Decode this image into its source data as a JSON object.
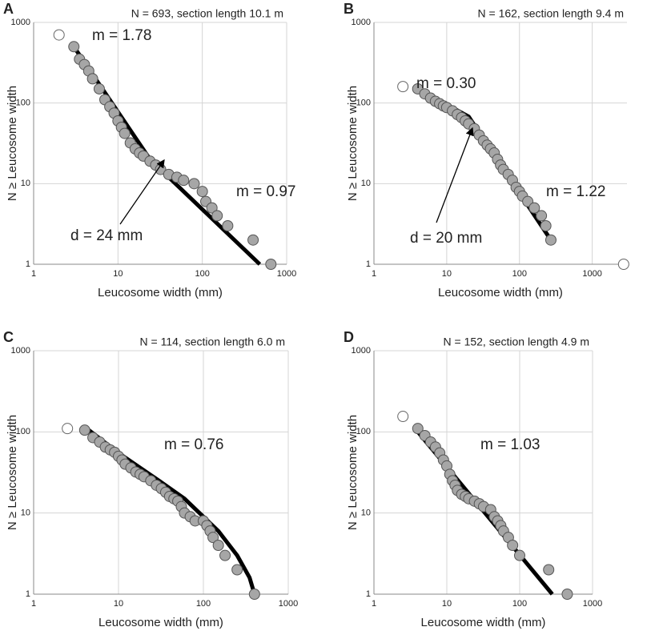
{
  "chart_data": [
    {
      "type": "scatter",
      "panel": "A",
      "title": "N = 693, section length 10.1 m",
      "x_label": "Leucosome width (mm)",
      "y_label": "N ≥ Leucosome width",
      "log_scale": true,
      "grid": true,
      "xlim": [
        1,
        1000
      ],
      "ylim": [
        1,
        1000
      ],
      "xticks": [
        1,
        10,
        100,
        1000
      ],
      "yticks": [
        1,
        10,
        100,
        1000
      ],
      "series": [
        {
          "marker": "filled",
          "color": "#a6a6a6",
          "x": [
            3,
            3.5,
            4,
            4.5,
            5,
            6,
            7,
            8,
            9,
            10,
            11,
            12,
            14,
            16,
            18,
            20,
            24,
            28,
            32,
            40,
            50,
            60,
            80,
            100,
            110,
            130,
            150,
            200,
            400,
            650
          ],
          "values": [
            500,
            350,
            300,
            250,
            200,
            150,
            110,
            90,
            75,
            60,
            50,
            42,
            32,
            27,
            24,
            22,
            19,
            17,
            15,
            13,
            12,
            11,
            10,
            8,
            6,
            5,
            4,
            3,
            2,
            1
          ]
        },
        {
          "marker": "open",
          "color": "#ffffff",
          "x": [
            2
          ],
          "values": [
            700
          ]
        },
        {
          "marker": "line",
          "color": "#000000",
          "x": [
            3,
            24,
            480
          ],
          "values": [
            500,
            20,
            1
          ]
        }
      ],
      "annotations": [
        "m = 1.78",
        "m = 0.97",
        "d = 24 mm"
      ]
    },
    {
      "type": "scatter",
      "panel": "B",
      "title": "N = 162, section length 9.4 m",
      "x_label": "Leucosome width (mm)",
      "y_label": "N ≥ Leucosome width",
      "log_scale": true,
      "grid": true,
      "xlim": [
        1,
        3000
      ],
      "ylim": [
        1,
        1000
      ],
      "xticks": [
        1,
        10,
        100,
        1000
      ],
      "yticks": [
        1,
        10,
        100,
        1000
      ],
      "series": [
        {
          "marker": "filled",
          "color": "#a6a6a6",
          "x": [
            4,
            5,
            6,
            7,
            8,
            9,
            10,
            12,
            14,
            16,
            18,
            20,
            24,
            28,
            32,
            36,
            40,
            45,
            50,
            55,
            60,
            70,
            80,
            90,
            100,
            110,
            130,
            160,
            200,
            230,
            270
          ],
          "values": [
            150,
            130,
            115,
            105,
            98,
            92,
            88,
            80,
            72,
            66,
            60,
            55,
            48,
            40,
            34,
            30,
            27,
            24,
            20,
            17,
            15,
            13,
            11,
            9,
            8,
            7,
            6,
            5,
            4,
            3,
            2
          ]
        },
        {
          "marker": "open",
          "color": "#ffffff",
          "x": [
            2.5,
            2700
          ],
          "values": [
            160,
            1
          ]
        },
        {
          "marker": "line",
          "color": "#000000",
          "x": [
            4,
            20,
            270
          ],
          "values": [
            150,
            68,
            2
          ]
        }
      ],
      "annotations": [
        "m = 0.30",
        "m = 1.22",
        "d = 20 mm"
      ]
    },
    {
      "type": "scatter",
      "panel": "C",
      "title": "N = 114, section length 6.0 m",
      "x_label": "Leucosome width (mm)",
      "y_label": "N ≥ Leucosome width",
      "log_scale": true,
      "grid": true,
      "xlim": [
        1,
        1000
      ],
      "ylim": [
        1,
        1000
      ],
      "xticks": [
        1,
        10,
        100,
        1000
      ],
      "yticks": [
        1,
        10,
        100,
        1000
      ],
      "series": [
        {
          "marker": "filled",
          "color": "#a6a6a6",
          "x": [
            4,
            5,
            6,
            7,
            8,
            9,
            10,
            11,
            12,
            14,
            16,
            18,
            20,
            24,
            28,
            32,
            36,
            40,
            45,
            50,
            55,
            60,
            70,
            80,
            100,
            110,
            120,
            130,
            150,
            180,
            250,
            400
          ],
          "values": [
            105,
            85,
            75,
            65,
            60,
            56,
            50,
            45,
            40,
            36,
            32,
            30,
            28,
            25,
            22,
            20,
            18,
            16,
            15,
            14,
            12,
            10,
            9,
            8,
            8,
            7,
            6,
            5,
            4,
            3,
            2,
            1
          ]
        },
        {
          "marker": "open",
          "color": "#ffffff",
          "x": [
            2.5
          ],
          "values": [
            110
          ]
        },
        {
          "marker": "line",
          "color": "#000000",
          "x": [
            4,
            10,
            30,
            60,
            100,
            150,
            250,
            350,
            400
          ],
          "values": [
            115,
            55,
            25,
            15,
            9,
            6,
            3,
            1.6,
            1
          ]
        }
      ],
      "annotations": [
        "m = 0.76"
      ]
    },
    {
      "type": "scatter",
      "panel": "D",
      "title": "N = 152, section length 4.9 m",
      "x_label": "Leucosome width (mm)",
      "y_label": "N ≥ Leucosome width",
      "log_scale": true,
      "grid": true,
      "xlim": [
        1,
        1000
      ],
      "ylim": [
        1,
        1000
      ],
      "xticks": [
        1,
        10,
        100,
        1000
      ],
      "yticks": [
        1,
        10,
        100,
        1000
      ],
      "series": [
        {
          "marker": "filled",
          "color": "#a6a6a6",
          "x": [
            4,
            5,
            6,
            7,
            8,
            9,
            10,
            11,
            12,
            13,
            14,
            16,
            18,
            20,
            24,
            28,
            32,
            40,
            45,
            50,
            55,
            60,
            70,
            80,
            100,
            250,
            450
          ],
          "values": [
            110,
            90,
            75,
            65,
            55,
            45,
            38,
            30,
            25,
            22,
            19,
            17,
            16,
            15,
            14,
            13,
            12,
            11,
            9,
            8,
            7,
            6,
            5,
            4,
            3,
            2,
            1
          ]
        },
        {
          "marker": "open",
          "color": "#ffffff",
          "x": [
            2.5
          ],
          "values": [
            155
          ]
        },
        {
          "marker": "line",
          "color": "#000000",
          "x": [
            4,
            280
          ],
          "values": [
            100,
            1
          ]
        }
      ],
      "annotations": [
        "m = 1.03"
      ]
    }
  ]
}
